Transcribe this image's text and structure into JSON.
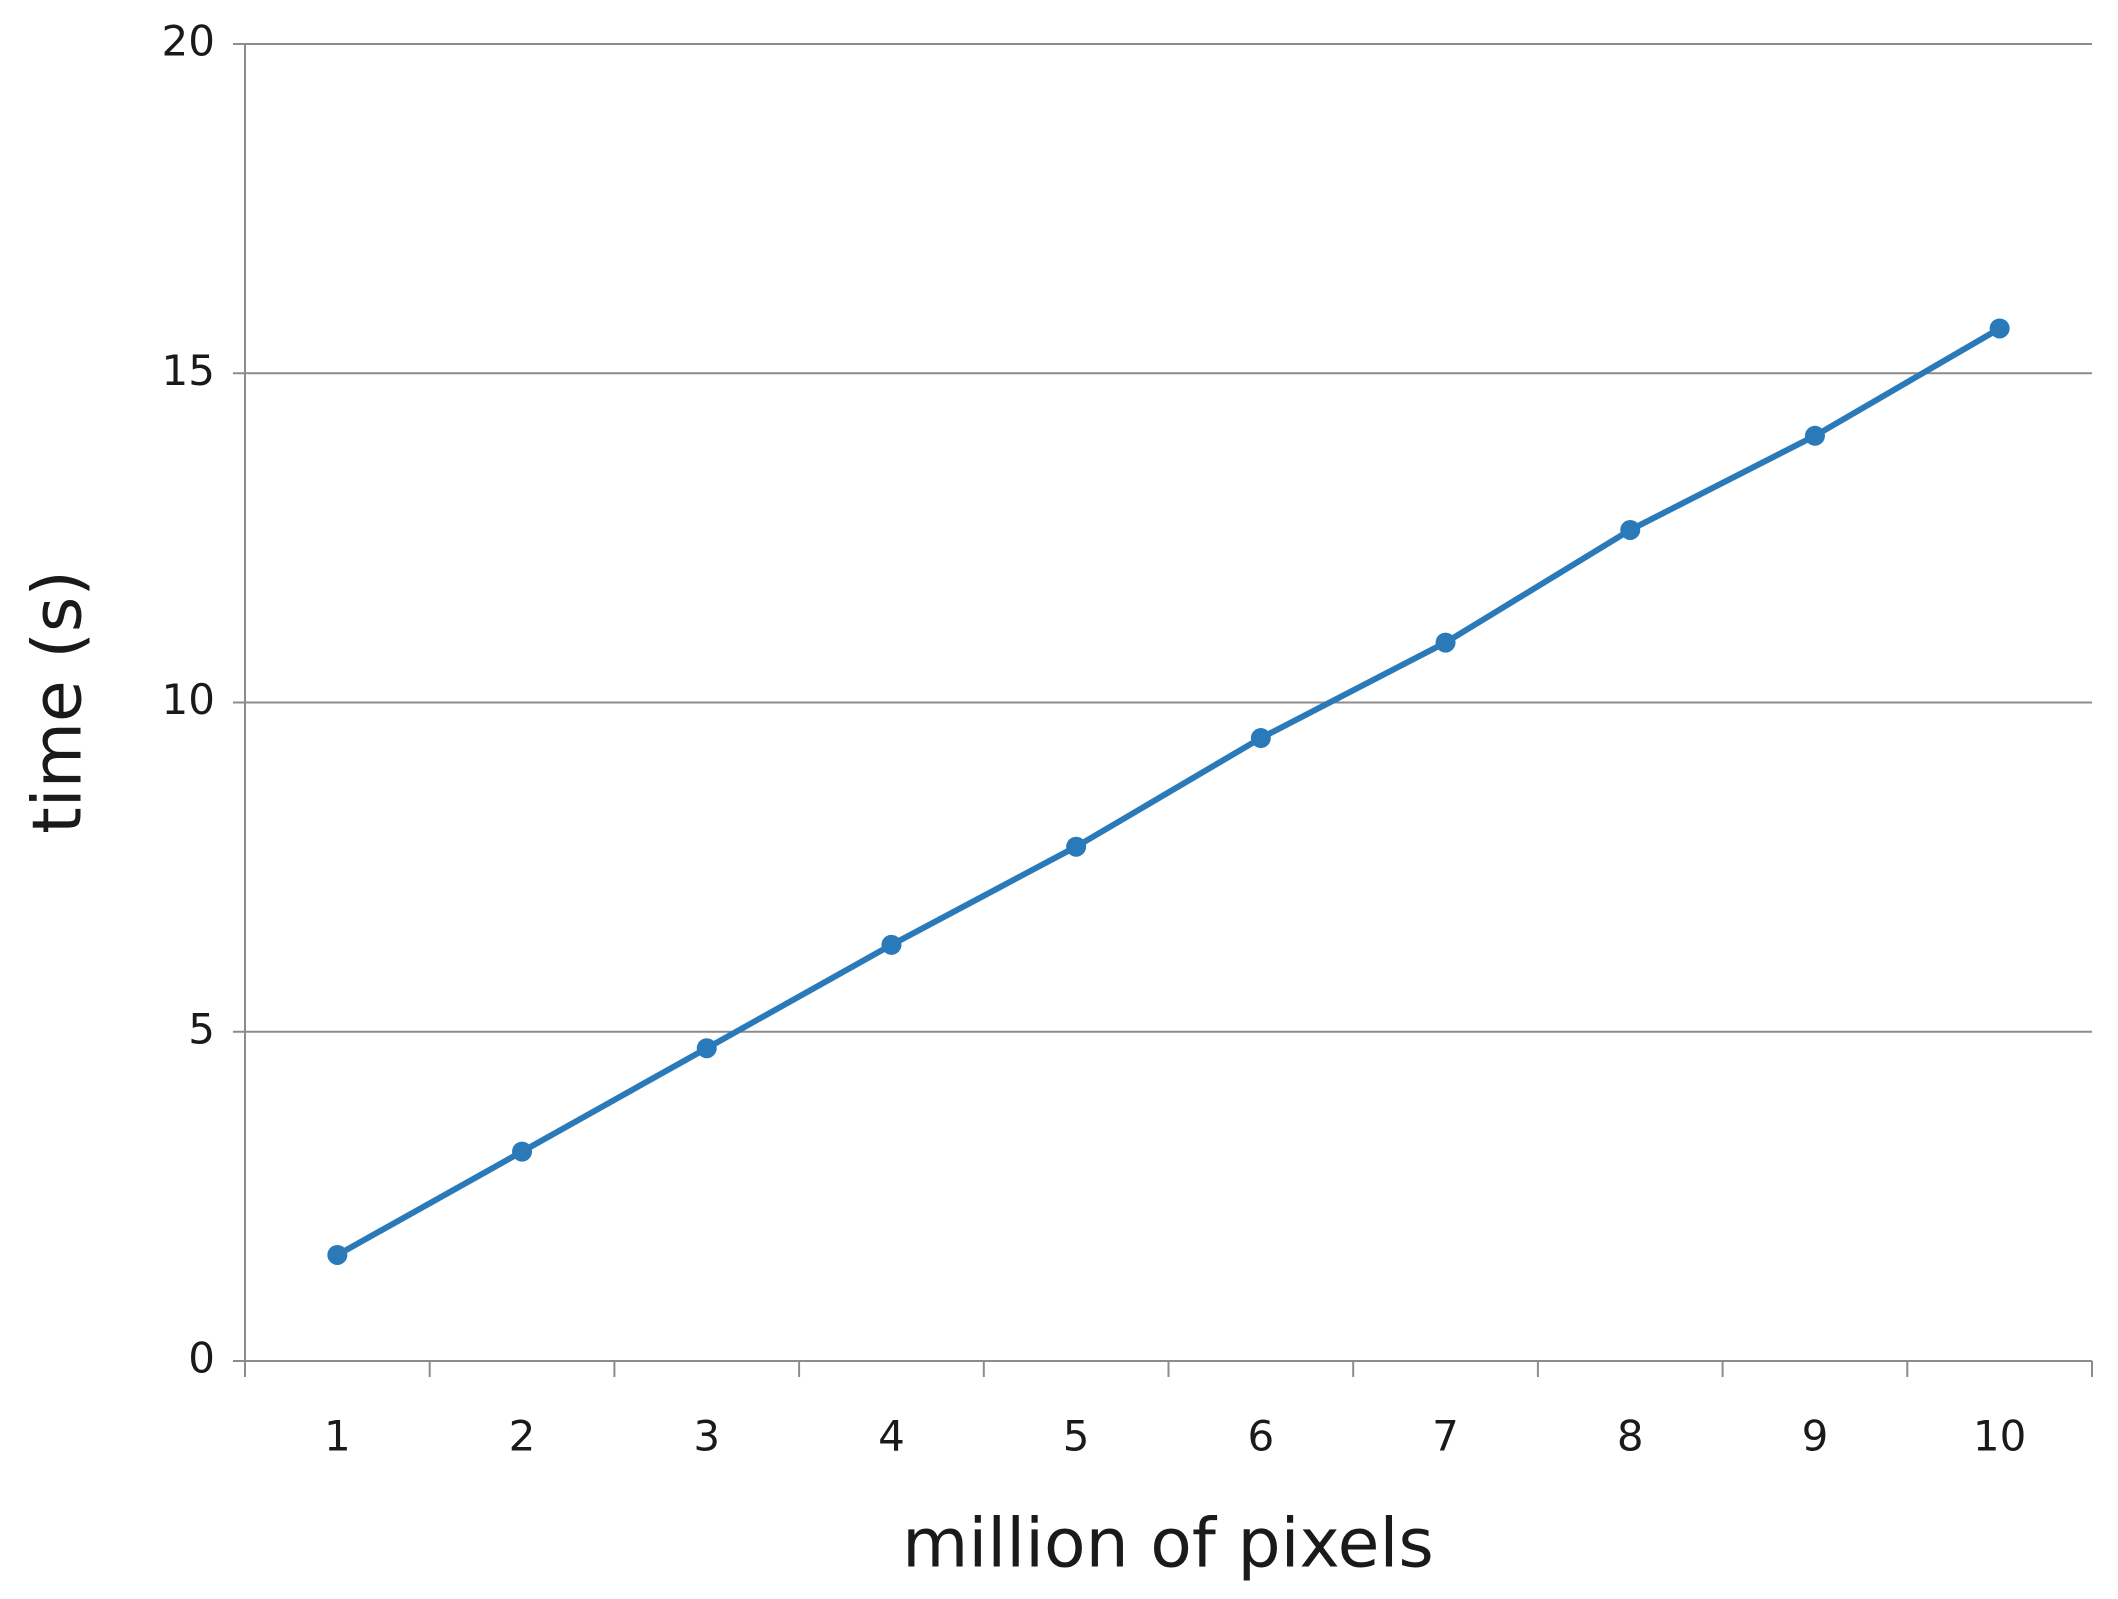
{
  "chart_data": {
    "type": "line",
    "x_label": "million of pixels",
    "y_label": "time (s)",
    "categories": [
      "1",
      "2",
      "3",
      "4",
      "5",
      "6",
      "7",
      "8",
      "9",
      "10"
    ],
    "series": [
      {
        "name": "time",
        "color": "#2a7ab9",
        "values": [
          1.61,
          3.18,
          4.75,
          6.32,
          7.81,
          9.46,
          10.91,
          12.62,
          14.05,
          15.68
        ]
      }
    ],
    "ylim": [
      0,
      20
    ],
    "yticks": [
      0,
      5,
      10,
      15,
      20
    ],
    "grid": true,
    "legend": false
  }
}
